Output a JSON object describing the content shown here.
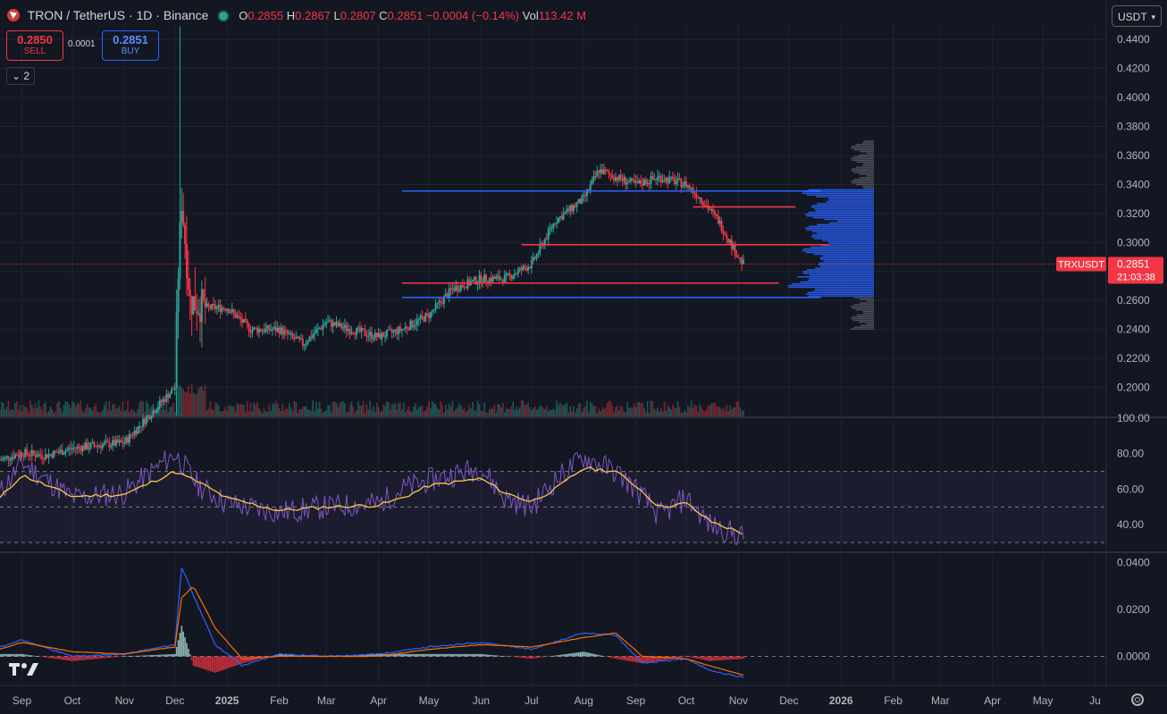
{
  "header": {
    "title": "TRON / TetherUS · 1D · Binance",
    "open_label": "O",
    "open": "0.2855",
    "high_label": "H",
    "high": "0.2867",
    "low_label": "L",
    "low": "0.2807",
    "close_label": "C",
    "close": "0.2851",
    "change": "−0.0004 (−0.14%)",
    "vol_label": "Vol",
    "vol": "113.42 M"
  },
  "trade": {
    "sell_price": "0.2850",
    "sell_label": "SELL",
    "spread": "0.0001",
    "buy_price": "0.2851",
    "buy_label": "BUY",
    "collapse_label": "2"
  },
  "currency": {
    "selected": "USDT"
  },
  "price_tag": {
    "symbol": "TRXUSDT",
    "price": "0.2851",
    "countdown": "21:03:38"
  },
  "colors": {
    "up": "#26a69a",
    "down": "#f23645",
    "blue": "#2962ff",
    "rsi": "#7e57c2",
    "rsi_ma": "#f7c948",
    "macd": "#2962ff",
    "signal": "#ff6d00"
  },
  "chart_data": [
    {
      "type": "line",
      "title": "TRON / TetherUS · 1D · Binance",
      "x": [
        "2024-08-19",
        "2024-09-01",
        "2024-09-15",
        "2024-10-01",
        "2024-10-15",
        "2024-11-01",
        "2024-11-15",
        "2024-12-01",
        "2024-12-03",
        "2024-12-05",
        "2024-12-10",
        "2024-12-20",
        "2025-01-01",
        "2025-01-15",
        "2025-02-01",
        "2025-02-15",
        "2025-03-01",
        "2025-03-15",
        "2025-04-01",
        "2025-04-15",
        "2025-05-01",
        "2025-05-15",
        "2025-06-01",
        "2025-06-15",
        "2025-07-01",
        "2025-07-15",
        "2025-08-01",
        "2025-08-10",
        "2025-08-20",
        "2025-09-01",
        "2025-09-15",
        "2025-10-01",
        "2025-10-10",
        "2025-10-20",
        "2025-11-01",
        "2025-11-04"
      ],
      "close": [
        0.15,
        0.155,
        0.153,
        0.158,
        0.16,
        0.162,
        0.18,
        0.2,
        0.28,
        0.33,
        0.26,
        0.255,
        0.255,
        0.24,
        0.24,
        0.23,
        0.245,
        0.24,
        0.235,
        0.24,
        0.25,
        0.268,
        0.275,
        0.275,
        0.285,
        0.315,
        0.33,
        0.35,
        0.345,
        0.34,
        0.345,
        0.34,
        0.33,
        0.315,
        0.29,
        0.2851
      ],
      "ylim": [
        0.18,
        0.45
      ],
      "yticks": [
        "0.4400",
        "0.4200",
        "0.4000",
        "0.3800",
        "0.3600",
        "0.3400",
        "0.3200",
        "0.3000",
        "0.2800",
        "0.2600",
        "0.2400",
        "0.2200",
        "0.2000"
      ],
      "xticks": [
        "Sep",
        "Oct",
        "Nov",
        "Dec",
        "2025",
        "Feb",
        "Mar",
        "Apr",
        "May",
        "Jun",
        "Jul",
        "Aug",
        "Sep",
        "Oct",
        "Nov",
        "Dec",
        "2026",
        "Feb",
        "Mar",
        "Apr",
        "May",
        "Ju"
      ],
      "levels": [
        {
          "price": 0.3355,
          "color": "#2962ff",
          "from": "2025-04-15",
          "to": "2025-12-20"
        },
        {
          "price": 0.3245,
          "color": "#f23645",
          "from": "2025-10-05",
          "to": "2025-12-05"
        },
        {
          "price": 0.2985,
          "color": "#f23645",
          "from": "2025-06-25",
          "to": "2025-12-25"
        },
        {
          "price": 0.272,
          "color": "#f23645",
          "from": "2025-04-15",
          "to": "2025-11-25"
        },
        {
          "price": 0.262,
          "color": "#2962ff",
          "from": "2025-04-15",
          "to": "2025-12-20"
        }
      ]
    },
    {
      "type": "line",
      "series_name": "RSI",
      "x": [
        "2024-08-19",
        "2024-09-01",
        "2024-10-01",
        "2024-11-01",
        "2024-12-01",
        "2024-12-15",
        "2025-01-01",
        "2025-02-01",
        "2025-03-01",
        "2025-04-01",
        "2025-04-15",
        "2025-05-01",
        "2025-06-01",
        "2025-06-15",
        "2025-07-01",
        "2025-07-15",
        "2025-08-01",
        "2025-08-20",
        "2025-09-01",
        "2025-09-15",
        "2025-10-01",
        "2025-10-15",
        "2025-11-04"
      ],
      "rsi": [
        58,
        75,
        55,
        58,
        80,
        62,
        52,
        47,
        50,
        52,
        60,
        65,
        72,
        55,
        50,
        65,
        78,
        70,
        60,
        45,
        55,
        40,
        33
      ],
      "rsi_ma": [
        55,
        68,
        56,
        57,
        70,
        64,
        55,
        48,
        50,
        51,
        55,
        62,
        66,
        58,
        53,
        60,
        72,
        70,
        62,
        50,
        52,
        42,
        35
      ],
      "ylim": [
        25,
        100
      ],
      "yticks": [
        "100.00",
        "80.00",
        "60.00",
        "40.00"
      ],
      "bands": [
        70,
        50,
        30
      ]
    },
    {
      "type": "line",
      "series_name": "MACD",
      "x": [
        "2024-08-19",
        "2024-09-01",
        "2024-10-01",
        "2024-11-01",
        "2024-12-01",
        "2024-12-05",
        "2024-12-12",
        "2024-12-25",
        "2025-01-10",
        "2025-02-01",
        "2025-03-01",
        "2025-04-01",
        "2025-05-01",
        "2025-06-01",
        "2025-07-01",
        "2025-08-01",
        "2025-08-20",
        "2025-09-05",
        "2025-10-01",
        "2025-10-15",
        "2025-11-04"
      ],
      "macd": [
        0.004,
        0.007,
        0.0,
        0.001,
        0.005,
        0.038,
        0.026,
        0.005,
        -0.004,
        0.001,
        0.0,
        0.001,
        0.004,
        0.006,
        0.003,
        0.01,
        0.009,
        -0.003,
        -0.001,
        -0.006,
        -0.009
      ],
      "signal": [
        0.003,
        0.006,
        0.002,
        0.001,
        0.004,
        0.025,
        0.03,
        0.012,
        -0.001,
        0.0,
        0.0,
        0.0,
        0.003,
        0.005,
        0.004,
        0.008,
        0.01,
        0.0,
        -0.001,
        -0.004,
        -0.008
      ],
      "ylim": [
        -0.012,
        0.044
      ],
      "yticks": [
        "0.0400",
        "0.0200",
        "0.0000"
      ]
    }
  ]
}
